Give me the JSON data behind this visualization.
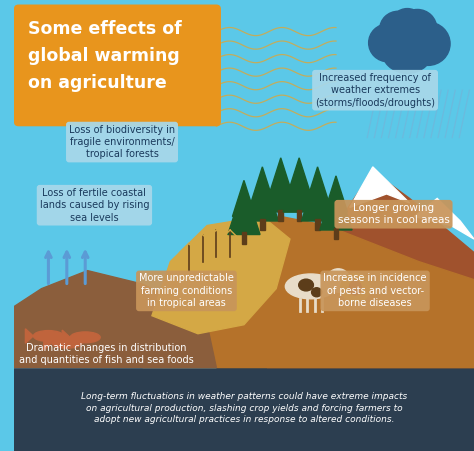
{
  "title_line1": "Some effects of",
  "title_line2": "global warming",
  "title_line3": "on agriculture",
  "title_bg": "#E8951D",
  "title_text_color": "#FFFFFF",
  "bg_sky": "#5BC8E8",
  "bg_ground_brown": "#B5722A",
  "bg_ground_dark": "#8B4513",
  "bg_water": "#4AADE0",
  "footer_bg": "#2C3E50",
  "footer_text_color": "#FFFFFF",
  "footer_text": "Long-term fluctuations in weather patterns could have extreme impacts\non agricultural production, slashing crop yields and forcing farmers to\nadopt new agricultural practices in response to altered conditions.",
  "label_bg_blue": "#A8D8EA",
  "label_bg_brown": "#C8955A",
  "wave_color": "#D4A845",
  "cloud_color": "#2C5F8A",
  "rain_color": "#6EB8DC",
  "arrow_color": "#5B9BD5",
  "tree_color": "#1A5C2A",
  "trunk_color": "#5C3D1A",
  "mountain_color": "#A0522D",
  "ground_color": "#B5722A",
  "fg_color": "#8B5E3C",
  "water_color": "#4AADE0",
  "crop_color": "#D4A845",
  "cow_color": "#E8DCC8",
  "cow_spot_color": "#5C3D1A",
  "fish_color": "#C0643C",
  "bug_bg_color": "#D4A820",
  "bug_body_color": "#8B1A1A",
  "label_text_dark": "#1A3A5C",
  "label_text_white": "#FFFFFF",
  "snow_color": "#FFFFFF"
}
